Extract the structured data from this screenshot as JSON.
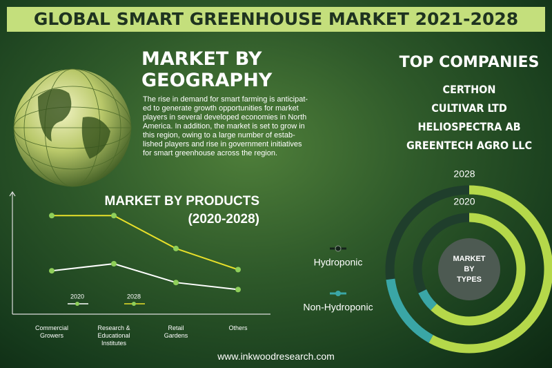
{
  "header": {
    "title": "GLOBAL SMART GREENHOUSE MARKET 2021-2028"
  },
  "geography": {
    "title": "MARKET BY GEOGRAPHY",
    "lines": [
      "The rise in demand for smart farming is anticipat-",
      "ed to generate growth opportunities for market",
      "players in several developed economies in North",
      "America. In addition, the market is set to grow in",
      "this region, owing to a large number of estab-",
      "lished players and rise in government initiatives",
      "for smart greenhouse across the region."
    ]
  },
  "companies": {
    "title": "TOP COMPANIES",
    "items": [
      "CERTHON",
      "CULTIVAR LTD",
      "HELIOSPECTRA AB",
      "GREENTECH AGRO LLC"
    ]
  },
  "footer": {
    "url": "www.inkwoodresearch.com"
  },
  "chart_data": [
    {
      "type": "line",
      "title": "MARKET BY PRODUCTS",
      "subtitle": "(2020-2028)",
      "categories": [
        "Commercial\nGrowers",
        "Research &\nEducational\nInstitutes",
        "Retail\nGardens",
        "Others"
      ],
      "series": [
        {
          "name": "2020",
          "color": "#ffffff",
          "values": [
            34,
            40,
            24,
            18
          ]
        },
        {
          "name": "2028",
          "color": "#e8e02a",
          "values": [
            81,
            81,
            53,
            35
          ]
        }
      ],
      "ylim": [
        0,
        100
      ]
    },
    {
      "type": "donut",
      "center_label": "MARKET\nBY\nTYPES",
      "categories": [
        "2028",
        "2020"
      ],
      "series": [
        {
          "name": "Hydroponic",
          "color": "#b5d84a",
          "values": [
            58,
            62
          ]
        },
        {
          "name": "Non-Hydroponic",
          "color": "#3aa6a6",
          "values": [
            15,
            6
          ]
        }
      ]
    }
  ]
}
